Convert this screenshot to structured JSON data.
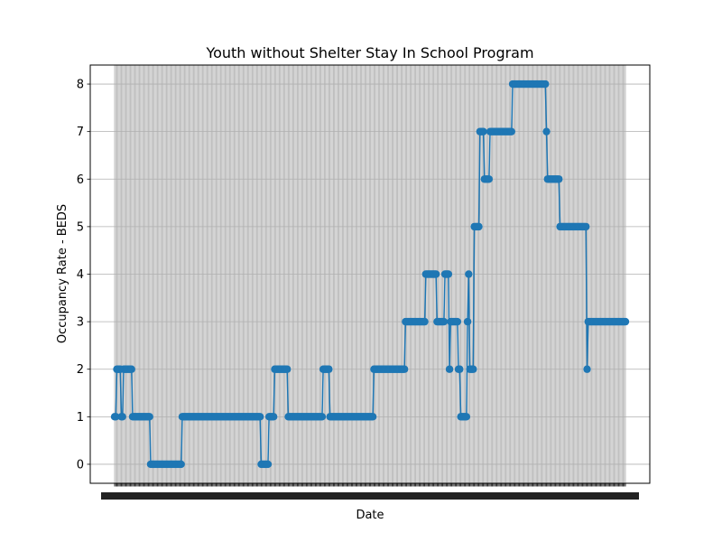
{
  "chart_data": {
    "type": "line",
    "title": "Youth without Shelter Stay In School Program",
    "xlabel": "Date",
    "ylabel": "Occupancy Rate - BEDS",
    "ylim": [
      -0.4,
      8.4
    ],
    "yticks": [
      0,
      1,
      2,
      3,
      4,
      5,
      6,
      7,
      8
    ],
    "grid": true,
    "series_color": "#1f77b4",
    "series": [
      {
        "values": [
          1,
          1,
          2,
          2,
          2,
          2,
          1,
          1,
          2,
          2,
          2,
          2,
          2,
          2,
          2,
          2,
          1,
          1,
          1,
          1,
          1,
          1,
          1,
          1,
          1,
          1,
          1,
          1,
          1,
          1,
          1,
          1,
          0,
          0,
          0,
          0,
          0,
          0,
          0,
          0,
          0,
          0,
          0,
          0,
          0,
          0,
          0,
          0,
          0,
          0,
          0,
          0,
          0,
          0,
          0,
          0,
          0,
          0,
          0,
          0,
          1,
          1,
          1,
          1,
          1,
          1,
          1,
          1,
          1,
          1,
          1,
          1,
          1,
          1,
          1,
          1,
          1,
          1,
          1,
          1,
          1,
          1,
          1,
          1,
          1,
          1,
          1,
          1,
          1,
          1,
          1,
          1,
          1,
          1,
          1,
          1,
          1,
          1,
          1,
          1,
          1,
          1,
          1,
          1,
          1,
          1,
          1,
          1,
          1,
          1,
          1,
          1,
          1,
          1,
          1,
          1,
          1,
          1,
          1,
          1,
          1,
          1,
          1,
          1,
          1,
          1,
          1,
          1,
          1,
          1,
          0,
          0,
          0,
          0,
          0,
          0,
          0,
          1,
          1,
          1,
          1,
          1,
          2,
          2,
          2,
          2,
          2,
          2,
          2,
          2,
          2,
          2,
          2,
          2,
          1,
          1,
          1,
          1,
          1,
          1,
          1,
          1,
          1,
          1,
          1,
          1,
          1,
          1,
          1,
          1,
          1,
          1,
          1,
          1,
          1,
          1,
          1,
          1,
          1,
          1,
          1,
          1,
          1,
          1,
          1,
          2,
          2,
          2,
          2,
          2,
          2,
          1,
          1,
          1,
          1,
          1,
          1,
          1,
          1,
          1,
          1,
          1,
          1,
          1,
          1,
          1,
          1,
          1,
          1,
          1,
          1,
          1,
          1,
          1,
          1,
          1,
          1,
          1,
          1,
          1,
          1,
          1,
          1,
          1,
          1,
          1,
          1,
          1,
          1,
          1,
          2,
          2,
          2,
          2,
          2,
          2,
          2,
          2,
          2,
          2,
          2,
          2,
          2,
          2,
          2,
          2,
          2,
          2,
          2,
          2,
          2,
          2,
          2,
          2,
          2,
          2,
          2,
          2,
          3,
          3,
          3,
          3,
          3,
          3,
          3,
          3,
          3,
          3,
          3,
          3,
          3,
          3,
          3,
          3,
          3,
          3,
          4,
          4,
          4,
          4,
          4,
          4,
          4,
          4,
          4,
          4,
          3,
          3,
          3,
          3,
          3,
          3,
          3,
          4,
          4,
          4,
          4,
          2,
          3,
          3,
          3,
          3,
          3,
          3,
          3,
          2,
          2,
          1,
          1,
          1,
          1,
          1,
          1,
          3,
          4,
          2,
          2,
          2,
          2,
          5,
          5,
          5,
          5,
          5,
          7,
          7,
          7,
          7,
          6,
          6,
          6,
          6,
          6,
          7,
          7,
          7,
          7,
          7,
          7,
          7,
          7,
          7,
          7,
          7,
          7,
          7,
          7,
          7,
          7,
          7,
          7,
          7,
          7,
          8,
          8,
          8,
          8,
          8,
          8,
          8,
          8,
          8,
          8,
          8,
          8,
          8,
          8,
          8,
          8,
          8,
          8,
          8,
          8,
          8,
          8,
          8,
          8,
          8,
          8,
          8,
          8,
          8,
          8,
          7,
          6,
          6,
          6,
          6,
          6,
          6,
          6,
          6,
          6,
          6,
          6,
          5,
          5,
          5,
          5,
          5,
          5,
          5,
          5,
          5,
          5,
          5,
          5,
          5,
          5,
          5,
          5,
          5,
          5,
          5,
          5,
          5,
          5,
          5,
          5,
          2,
          3,
          3,
          3,
          3,
          3,
          3,
          3,
          3,
          3,
          3,
          3,
          3,
          3,
          3,
          3,
          3,
          3,
          3,
          3,
          3,
          3,
          3,
          3,
          3,
          3,
          3,
          3,
          3,
          3,
          3,
          3,
          3,
          3,
          3
        ]
      }
    ]
  }
}
